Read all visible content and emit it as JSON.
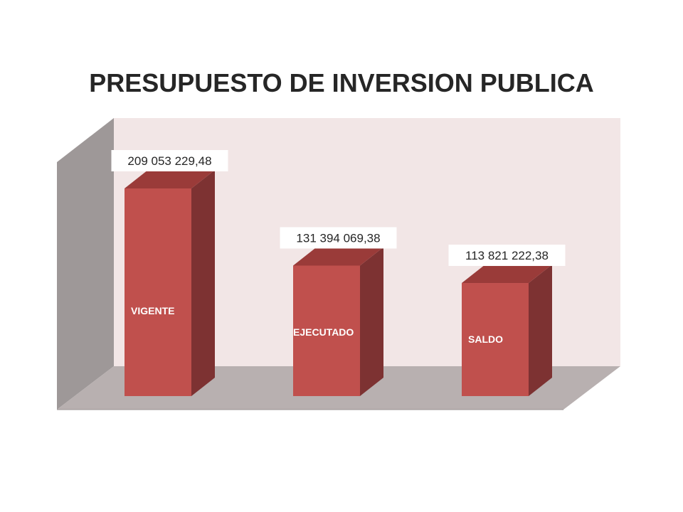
{
  "chart_data": {
    "type": "bar",
    "title": "PRESUPUESTO DE INVERSION PUBLICA",
    "categories": [
      "VIGENTE",
      "EJECUTADO",
      "SALDO"
    ],
    "values": [
      209053229.48,
      131394069.38,
      113821222.38
    ],
    "value_labels": [
      "209 053 229,48",
      "131 394 069,38",
      "113 821 222,38"
    ],
    "ylim": [
      0,
      250000000
    ],
    "grid": false,
    "legend": "none",
    "colors": {
      "bar_front": "#c0504d",
      "bar_side": "#7d3232",
      "back_wall": "#f2e6e6",
      "side_wall": "#9e9898",
      "floor": "#b8b0b0"
    }
  }
}
